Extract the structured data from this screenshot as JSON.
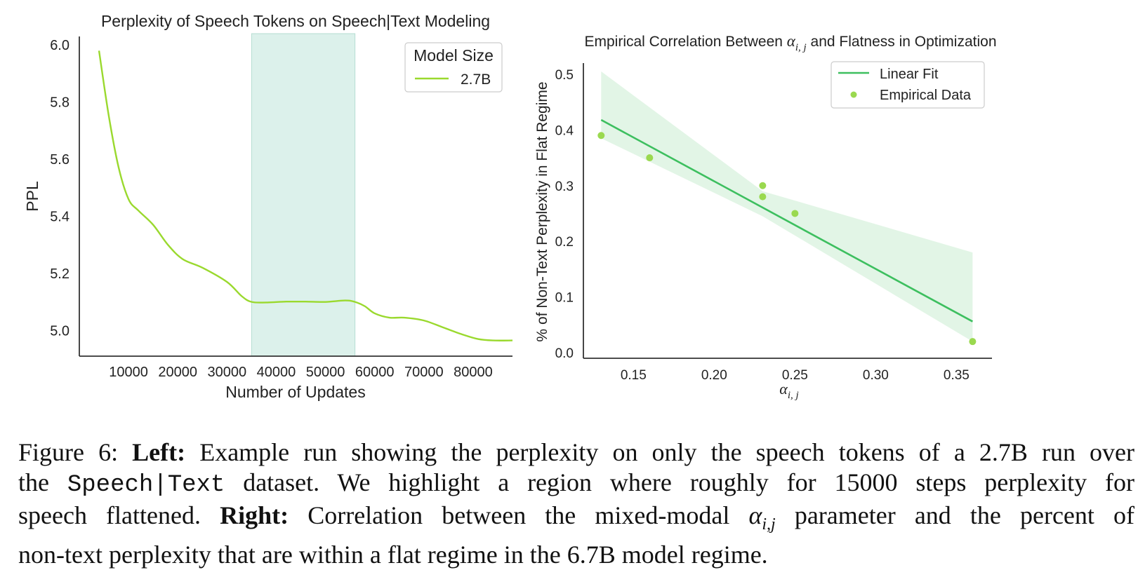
{
  "chart_data": [
    {
      "type": "line",
      "title": "Perplexity of Speech Tokens on Speech|Text Modeling",
      "xlabel": "Number of Updates",
      "ylabel": "PPL",
      "xlim": [
        0,
        88000
      ],
      "ylim": [
        4.91,
        6.03
      ],
      "xticks": [
        10000,
        20000,
        30000,
        40000,
        50000,
        60000,
        70000,
        80000
      ],
      "yticks": [
        5.0,
        5.2,
        5.4,
        5.6,
        5.8,
        6.0
      ],
      "ytick_labels": [
        "5.0",
        "5.2",
        "5.4",
        "5.6",
        "5.8",
        "6.0"
      ],
      "highlight_region": [
        35000,
        56000
      ],
      "legend": {
        "title": "Model Size",
        "position": "top-right",
        "entries": [
          "2.7B"
        ]
      },
      "series": [
        {
          "name": "2.7B",
          "color": "#9ad92e",
          "x": [
            4000,
            6000,
            8000,
            10000,
            12000,
            15000,
            18000,
            21000,
            25000,
            30000,
            33000,
            35000,
            38000,
            42000,
            46000,
            50000,
            54000,
            56000,
            58000,
            60000,
            63000,
            66000,
            70000,
            74000,
            78000,
            81000,
            84000,
            88000
          ],
          "values": [
            5.98,
            5.75,
            5.57,
            5.46,
            5.42,
            5.37,
            5.3,
            5.25,
            5.22,
            5.17,
            5.12,
            5.1,
            5.098,
            5.101,
            5.101,
            5.1,
            5.105,
            5.1,
            5.085,
            5.06,
            5.045,
            5.045,
            5.035,
            5.01,
            4.985,
            4.97,
            4.965,
            4.965
          ]
        }
      ]
    },
    {
      "type": "scatter",
      "title": "Empirical Correlation Between αi,j and Flatness in Optimization",
      "xlabel": "αi,j",
      "ylabel": "% of Non-Text Perplexity in Flat Regime",
      "xlim": [
        0.119,
        0.372
      ],
      "ylim": [
        -0.01,
        0.52
      ],
      "xticks": [
        0.15,
        0.2,
        0.25,
        0.3,
        0.35
      ],
      "xtick_labels": [
        "0.15",
        "0.20",
        "0.25",
        "0.30",
        "0.35"
      ],
      "yticks": [
        0.0,
        0.1,
        0.2,
        0.3,
        0.4,
        0.5
      ],
      "ytick_labels": [
        "0.0",
        "0.1",
        "0.2",
        "0.3",
        "0.4",
        "0.5"
      ],
      "legend": {
        "position": "top-right",
        "entries": [
          "Linear Fit",
          "Empirical Data"
        ]
      },
      "fit_color": "#3dbf5f",
      "point_color": "#9ad94f",
      "band_color": "#e2f5e6",
      "points": {
        "x": [
          0.13,
          0.16,
          0.23,
          0.23,
          0.25,
          0.36
        ],
        "y": [
          0.39,
          0.35,
          0.3,
          0.28,
          0.25,
          0.02
        ]
      },
      "fit_line": {
        "x": [
          0.13,
          0.36
        ],
        "y": [
          0.418,
          0.056
        ]
      },
      "confidence_band": {
        "x": [
          0.13,
          0.23,
          0.36
        ],
        "upper": [
          0.505,
          0.29,
          0.18
        ],
        "lower": [
          0.385,
          0.245,
          0.02
        ]
      }
    }
  ],
  "caption": {
    "label": "Figure 6:",
    "left_head": "Left:",
    "left_text_1": "Example run showing the perplexity on only the speech tokens of a 2.7B run over",
    "left_text_2a": "the",
    "dataset_name": "Speech|Text",
    "left_text_2b": "dataset.  We highlight a region where roughly for 15000 steps perplexity for",
    "left_text_3a": "speech flattened.",
    "right_head": "Right:",
    "right_text_1": "Correlation between the mixed-modal",
    "alpha_symbol": "α",
    "alpha_sub": "i,j",
    "right_text_2": "parameter and the percent of",
    "right_text_3": "non-text perplexity that are within a flat regime in the 6.7B model regime."
  }
}
